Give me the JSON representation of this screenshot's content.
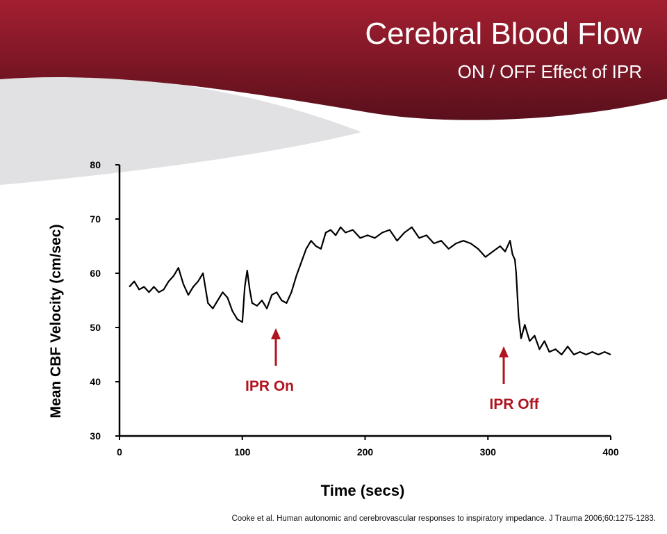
{
  "slide": {
    "title": "Cerebral Blood Flow",
    "subtitle": "ON / OFF Effect of IPR",
    "citation": "Cooke et al. Human  autonomic and cerebrovascular responses to inspiratory impedance. J Trauma  2006;60:1275-1283."
  },
  "colors": {
    "header_dark": "#5a0f1c",
    "header_mid": "#a31f30",
    "swoosh_gray": "#e1e1e3",
    "annotation_red": "#b0141f",
    "line": "#000000"
  },
  "chart_data": {
    "type": "line",
    "title": "",
    "xlabel": "Time (secs)",
    "ylabel": "Mean CBF Velocity (cm/sec)",
    "xlim": [
      0,
      400
    ],
    "ylim": [
      30,
      80
    ],
    "xticks": [
      "0",
      "100",
      "200",
      "300",
      "400"
    ],
    "yticks": [
      "30",
      "40",
      "50",
      "60",
      "70",
      "80"
    ],
    "grid": false,
    "legend": "none",
    "series": [
      {
        "name": "",
        "x": [
          8,
          12,
          16,
          20,
          24,
          28,
          32,
          36,
          40,
          44,
          48,
          52,
          56,
          60,
          64,
          68,
          72,
          76,
          80,
          84,
          88,
          92,
          96,
          100,
          102,
          104,
          106,
          108,
          112,
          116,
          120,
          124,
          128,
          132,
          136,
          140,
          144,
          148,
          152,
          156,
          160,
          164,
          168,
          172,
          176,
          180,
          184,
          190,
          196,
          202,
          208,
          214,
          220,
          226,
          232,
          238,
          244,
          250,
          256,
          262,
          268,
          274,
          280,
          286,
          292,
          298,
          304,
          310,
          314,
          318,
          320,
          322,
          323,
          325,
          327,
          330,
          334,
          338,
          342,
          346,
          350,
          355,
          360,
          365,
          370,
          375,
          380,
          385,
          390,
          395,
          400
        ],
        "y": [
          57.5,
          58.5,
          57.0,
          57.5,
          56.5,
          57.5,
          56.5,
          57.0,
          58.5,
          59.5,
          61.0,
          58.0,
          56.0,
          57.5,
          58.5,
          60.0,
          54.5,
          53.5,
          55.0,
          56.5,
          55.5,
          53.0,
          51.5,
          51.0,
          57.5,
          60.5,
          57.0,
          54.5,
          54.0,
          55.0,
          53.5,
          56.0,
          56.5,
          55.0,
          54.5,
          56.5,
          59.5,
          62.0,
          64.5,
          66.0,
          65.0,
          64.5,
          67.5,
          68.0,
          67.0,
          68.5,
          67.5,
          68.0,
          66.5,
          67.0,
          66.5,
          67.5,
          68.0,
          66.0,
          67.5,
          68.5,
          66.5,
          67.0,
          65.5,
          66.0,
          64.5,
          65.5,
          66.0,
          65.5,
          64.5,
          63.0,
          64.0,
          65.0,
          64.0,
          66.0,
          63.5,
          62.5,
          60.0,
          52.0,
          48.0,
          50.5,
          47.5,
          48.5,
          46.0,
          47.5,
          45.5,
          46.0,
          45.0,
          46.5,
          45.0,
          45.5,
          45.0,
          45.5,
          45.0,
          45.5,
          45.0
        ]
      }
    ],
    "annotations": [
      {
        "text": "IPR On",
        "x": 128
      },
      {
        "text": "IPR Off",
        "x": 313
      }
    ]
  }
}
